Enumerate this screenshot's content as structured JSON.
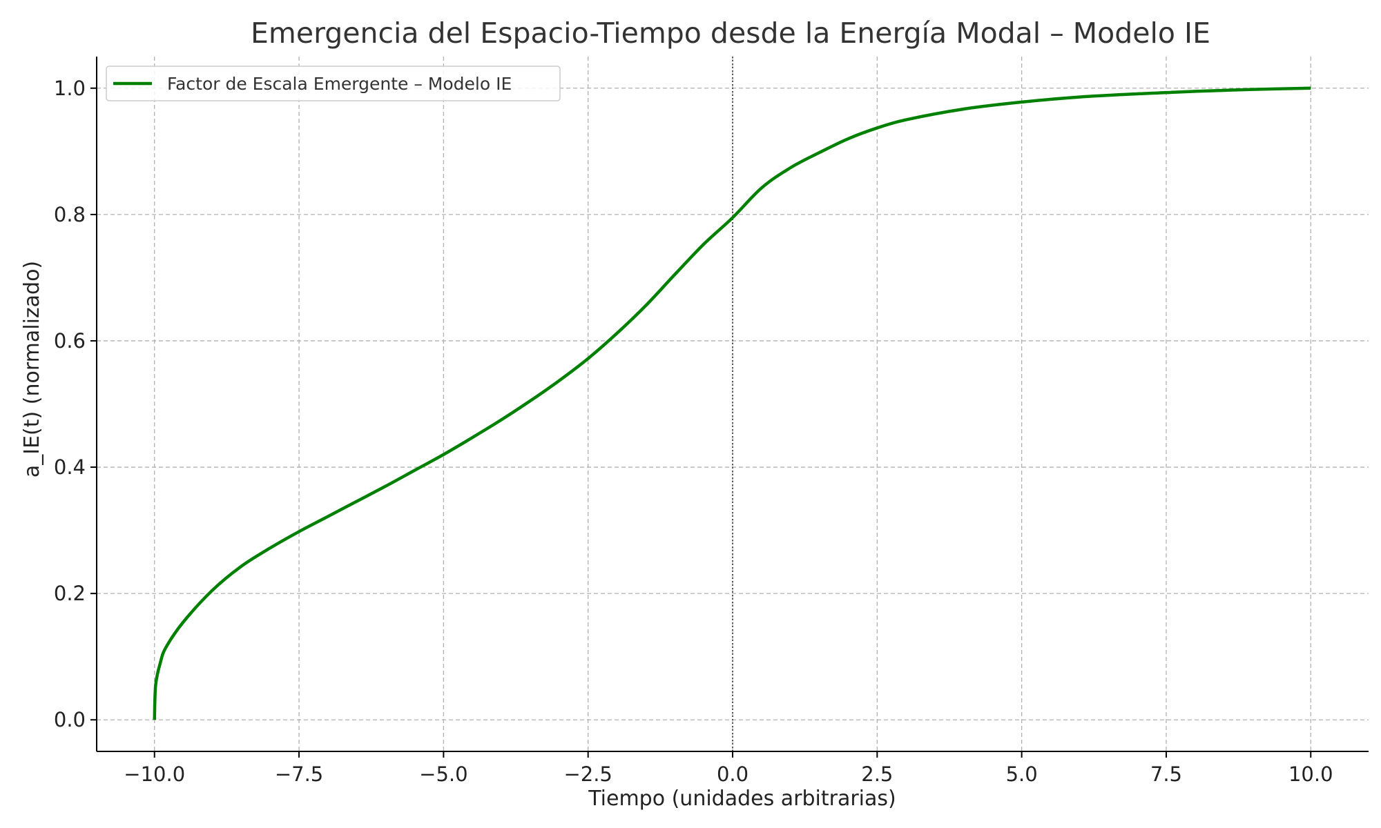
{
  "chart_data": {
    "type": "line",
    "title": "Emergencia del Espacio-Tiempo desde la Energía Modal – Modelo IE",
    "xlabel": "Tiempo (unidades arbitrarias)",
    "ylabel": "a_IE(t) (normalizado)",
    "xlim": [
      -11,
      11
    ],
    "ylim": [
      -0.05,
      1.05
    ],
    "x_ticks": [
      -10,
      -7.5,
      -5,
      -2.5,
      0,
      2.5,
      5,
      7.5,
      10
    ],
    "x_tick_labels": [
      "−10.0",
      "−7.5",
      "−5.0",
      "−2.5",
      "0.0",
      "2.5",
      "5.0",
      "7.5",
      "10.0"
    ],
    "y_ticks": [
      0,
      0.2,
      0.4,
      0.6,
      0.8,
      1.0
    ],
    "y_tick_labels": [
      "0.0",
      "0.2",
      "0.4",
      "0.6",
      "0.8",
      "1.0"
    ],
    "grid": true,
    "legend_position": "top-left",
    "reference_vline_x": 0,
    "series": [
      {
        "name": "Factor de Escala Emergente – Modelo IE",
        "color": "#008000",
        "x": [
          -10,
          -9.98,
          -9.9,
          -9.8,
          -9.5,
          -9.0,
          -8.5,
          -8.0,
          -7.5,
          -7.0,
          -6.5,
          -6.0,
          -5.5,
          -5.0,
          -4.5,
          -4.0,
          -3.5,
          -3.0,
          -2.5,
          -2.0,
          -1.5,
          -1.0,
          -0.5,
          0,
          0.5,
          1.0,
          1.5,
          2.0,
          2.5,
          3.0,
          4.0,
          5.0,
          6.0,
          7.0,
          7.5,
          8.0,
          9.0,
          10.0
        ],
        "y": [
          0.0,
          0.055,
          0.09,
          0.115,
          0.155,
          0.205,
          0.243,
          0.272,
          0.298,
          0.322,
          0.346,
          0.37,
          0.395,
          0.42,
          0.447,
          0.475,
          0.505,
          0.537,
          0.572,
          0.612,
          0.656,
          0.705,
          0.753,
          0.795,
          0.842,
          0.874,
          0.898,
          0.92,
          0.937,
          0.95,
          0.967,
          0.978,
          0.986,
          0.991,
          0.993,
          0.995,
          0.998,
          1.0
        ]
      }
    ]
  }
}
